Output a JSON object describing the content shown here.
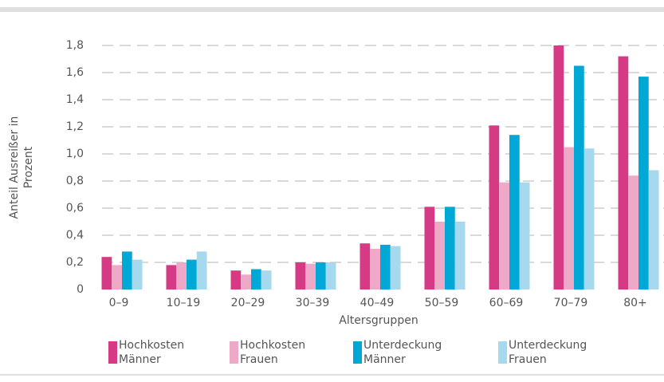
{
  "chart_data": {
    "type": "bar",
    "ylabel": "Anteil Ausreißer in Prozent",
    "xlabel": "Altersgruppen",
    "categories": [
      "0–9",
      "10–19",
      "20–29",
      "30–39",
      "40–49",
      "50–59",
      "60–69",
      "70–79",
      "80+"
    ],
    "series": [
      {
        "name": "Hochkosten Männer",
        "color": "#d63a84",
        "values": [
          0.24,
          0.18,
          0.14,
          0.2,
          0.34,
          0.61,
          1.21,
          1.8,
          1.72
        ]
      },
      {
        "name": "Hochkosten Frauen",
        "color": "#eea8c8",
        "values": [
          0.18,
          0.2,
          0.11,
          0.19,
          0.3,
          0.5,
          0.79,
          1.05,
          0.84
        ]
      },
      {
        "name": "Unterdeckung Männer",
        "color": "#00a8d6",
        "values": [
          0.28,
          0.22,
          0.15,
          0.2,
          0.33,
          0.61,
          1.14,
          1.65,
          1.57
        ]
      },
      {
        "name": "Unterdeckung Frauen",
        "color": "#a6d9ee",
        "values": [
          0.22,
          0.28,
          0.14,
          0.2,
          0.32,
          0.5,
          0.79,
          1.04,
          0.88
        ]
      }
    ],
    "ylim": [
      0,
      1.8
    ],
    "yticks": [
      0,
      {
        "value": 0.2,
        "label": "0,2"
      },
      {
        "value": 0.4,
        "label": "0,4"
      },
      {
        "value": 0.6,
        "label": "0,6"
      },
      {
        "value": 0.8,
        "label": "0,8"
      },
      {
        "value": 1.0,
        "label": "1,0"
      },
      {
        "value": 1.2,
        "label": "1,2"
      },
      {
        "value": 1.4,
        "label": "1,4"
      },
      {
        "value": 1.6,
        "label": "1,6"
      },
      {
        "value": 1.8,
        "label": "1,8"
      }
    ],
    "grid": true,
    "legend": "bottom"
  }
}
